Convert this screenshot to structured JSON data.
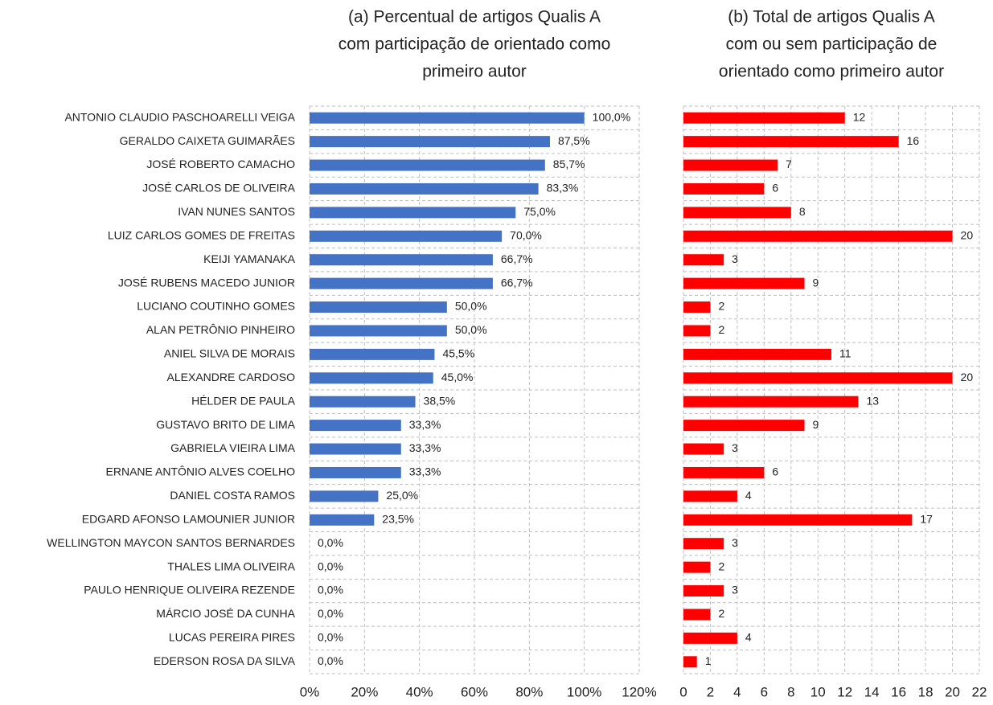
{
  "chart_data": [
    {
      "type": "hbar",
      "title": [
        "(a) Percentual de artigos Qualis A",
        "com participação de orientado como",
        "primeiro autor"
      ],
      "categories": [
        "ANTONIO CLAUDIO PASCHOARELLI VEIGA",
        "GERALDO CAIXETA GUIMARÃES",
        "JOSÉ ROBERTO CAMACHO",
        "JOSÉ CARLOS DE OLIVEIRA",
        "IVAN NUNES SANTOS",
        "LUIZ CARLOS GOMES DE FREITAS",
        "KEIJI YAMANAKA",
        "JOSÉ RUBENS MACEDO JUNIOR",
        "LUCIANO COUTINHO GOMES",
        "ALAN PETRÔNIO PINHEIRO",
        "ANIEL SILVA DE MORAIS",
        "ALEXANDRE CARDOSO",
        "HÉLDER DE PAULA",
        "GUSTAVO BRITO DE LIMA",
        "GABRIELA VIEIRA LIMA",
        "ERNANE ANTÔNIO ALVES COELHO",
        "DANIEL COSTA RAMOS",
        "EDGARD AFONSO LAMOUNIER JUNIOR",
        "WELLINGTON MAYCON SANTOS BERNARDES",
        "THALES LIMA OLIVEIRA",
        "PAULO HENRIQUE OLIVEIRA REZENDE",
        "MÁRCIO JOSÉ DA CUNHA",
        "LUCAS PEREIRA PIRES",
        "EDERSON ROSA DA SILVA"
      ],
      "values": [
        100,
        87.5,
        85.7,
        83.3,
        75,
        70,
        66.7,
        66.7,
        50,
        50,
        45.5,
        45,
        38.5,
        33.3,
        33.3,
        33.3,
        25,
        23.5,
        0,
        0,
        0,
        0,
        0,
        0
      ],
      "value_labels": [
        "100,0%",
        "87,5%",
        "85,7%",
        "83,3%",
        "75,0%",
        "70,0%",
        "66,7%",
        "66,7%",
        "50,0%",
        "50,0%",
        "45,5%",
        "45,0%",
        "38,5%",
        "33,3%",
        "33,3%",
        "33,3%",
        "25,0%",
        "23,5%",
        "0,0%",
        "0,0%",
        "0,0%",
        "0,0%",
        "0,0%",
        "0,0%"
      ],
      "color": "#4472c4",
      "xlim": [
        0,
        120
      ],
      "xticks": [
        {
          "value": 0,
          "label": "0%"
        },
        {
          "value": 20,
          "label": "20%"
        },
        {
          "value": 40,
          "label": "40%"
        },
        {
          "value": 60,
          "label": "60%"
        },
        {
          "value": 80,
          "label": "80%"
        },
        {
          "value": 100,
          "label": "100%"
        },
        {
          "value": 120,
          "label": "120%"
        }
      ],
      "grid": true
    },
    {
      "type": "hbar",
      "title": [
        "(b) Total de artigos Qualis A",
        "com ou sem participação de",
        "orientado como primeiro autor"
      ],
      "values": [
        12,
        16,
        7,
        6,
        8,
        20,
        3,
        9,
        2,
        2,
        11,
        20,
        13,
        9,
        3,
        6,
        4,
        17,
        3,
        2,
        3,
        2,
        4,
        1
      ],
      "color": "#ff0000",
      "xlim": [
        0,
        22
      ],
      "xticks": [
        0,
        2,
        4,
        6,
        8,
        10,
        12,
        14,
        16,
        18,
        20,
        22
      ],
      "grid": true
    }
  ]
}
